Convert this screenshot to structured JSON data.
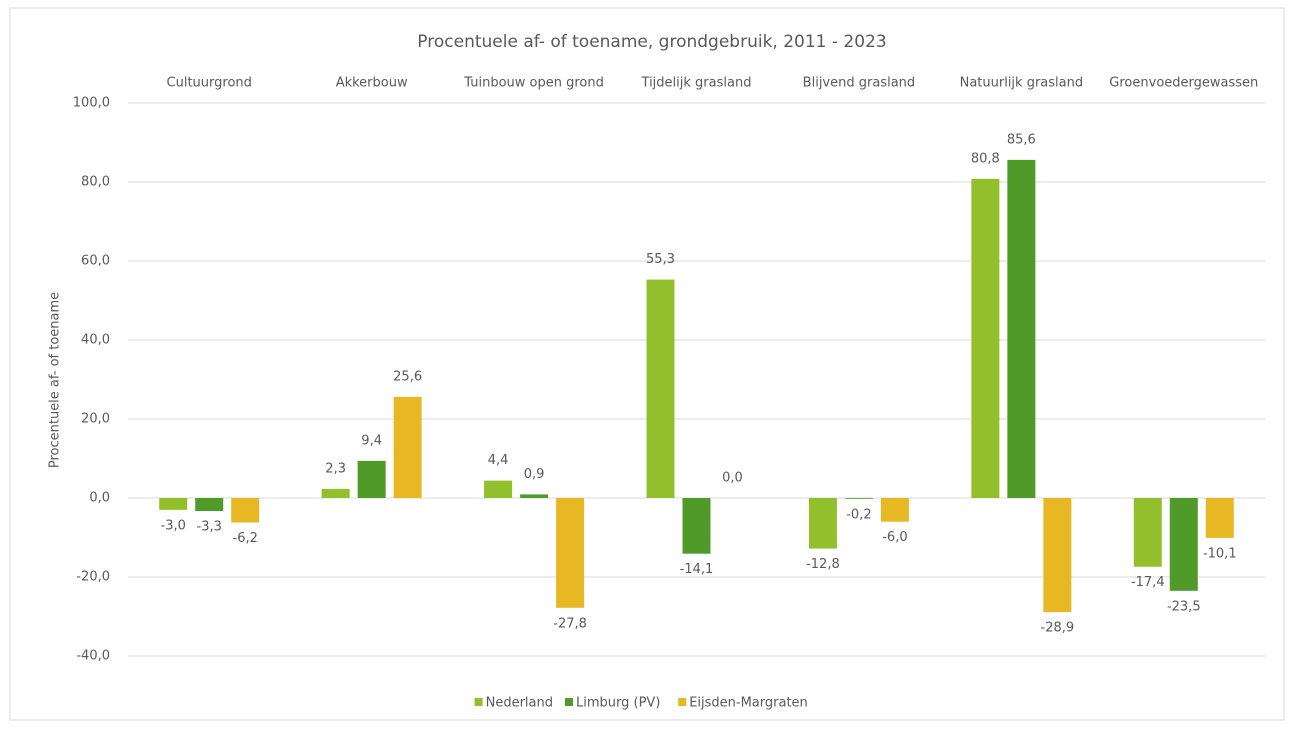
{
  "chart_data": {
    "type": "bar",
    "title": "Procentuele af- of toename, grondgebruik, 2011 - 2023",
    "y_label": "Procentuele af- of toename",
    "categories": [
      "Cultuurgrond",
      "Akkerbouw",
      "Tuinbouw open grond",
      "Tijdelijk grasland",
      "Blijvend grasland",
      "Natuurlijk grasland",
      "Groenvoedergewassen"
    ],
    "series": [
      {
        "name": "Nederland",
        "color": "#92c02c",
        "values": [
          -3.0,
          2.3,
          4.4,
          55.3,
          -12.8,
          80.8,
          -17.4
        ],
        "value_labels": [
          "-3,0",
          "2,3",
          "4,4",
          "55,3",
          "-12,8",
          "80,8",
          "-17,4"
        ]
      },
      {
        "name": "Limburg (PV)",
        "color": "#4f9a29",
        "values": [
          -3.3,
          9.4,
          0.9,
          -14.1,
          -0.2,
          85.6,
          -23.5
        ],
        "value_labels": [
          "-3,3",
          "9,4",
          "0,9",
          "-14,1",
          "-0,2",
          "85,6",
          "-23,5"
        ]
      },
      {
        "name": "Eijsden-Margraten",
        "color": "#e8b824",
        "values": [
          -6.2,
          25.6,
          -27.8,
          0.0,
          -6.0,
          -28.9,
          -10.1
        ],
        "value_labels": [
          "-6,2",
          "25,6",
          "-27,8",
          "0,0",
          "-6,0",
          "-28,9",
          "-10,1"
        ]
      }
    ],
    "ylim": [
      -40,
      100
    ],
    "yticks": [
      {
        "value": -40,
        "label": "-40,0"
      },
      {
        "value": -20,
        "label": "-20,0"
      },
      {
        "value": 0,
        "label": "0,0"
      },
      {
        "value": 20,
        "label": "20,0"
      },
      {
        "value": 40,
        "label": "40,0"
      },
      {
        "value": 60,
        "label": "60,0"
      },
      {
        "value": 80,
        "label": "80,0"
      },
      {
        "value": 100,
        "label": "100,0"
      }
    ],
    "grid": true,
    "legend": "bottom"
  }
}
